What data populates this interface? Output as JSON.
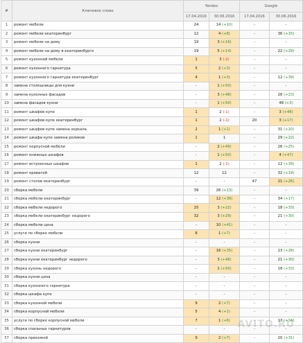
{
  "header": {
    "num": "#",
    "keyword": "Ключевое слово",
    "yandex": "Yandex",
    "google": "Google",
    "date1": "17.04.2016",
    "date2": "30.06.2016"
  },
  "rows": [
    {
      "n": "1",
      "kw": "ремонт мебели",
      "y1": "24",
      "y2": "14",
      "y2d": "(+10)",
      "g1": "-",
      "g2": "-",
      "g2d": ""
    },
    {
      "n": "2",
      "kw": "ремонт мебели екатеринбург",
      "y1": "12",
      "y2": "4",
      "y2d": "(+8)",
      "g1": "-",
      "g2": "36",
      "g2d": "(+15)"
    },
    {
      "n": "3",
      "kw": "ремонт мебели на дому",
      "y1": "19",
      "y2": "3",
      "y2d": "(+16)",
      "g1": "-",
      "g2": "-",
      "g2d": ""
    },
    {
      "n": "4",
      "kw": "ремонт мебели на дому в екатеринбурге",
      "y1": "19",
      "y2": "5",
      "y2d": "(+14)",
      "g1": "-",
      "g2": "22",
      "g2d": "(+29)"
    },
    {
      "n": "5",
      "kw": "ремонт кухонной мебели",
      "y1": "1",
      "y2": "3",
      "y2d": "(-2)",
      "g1": "-",
      "g2": "-",
      "g2d": ""
    },
    {
      "n": "6",
      "kw": "ремонт кухонного гарнитура",
      "y1": "5",
      "y2": "2",
      "y2d": "(+3)",
      "g1": "-",
      "g2": "-",
      "g2d": ""
    },
    {
      "n": "7",
      "kw": "ремонт кухонного гарнитура екатеринбург",
      "y1": "4",
      "y2": "1",
      "y2d": "(+3)",
      "g1": "-",
      "g2": "12",
      "g2d": "(+39)"
    },
    {
      "n": "8",
      "kw": "замена столешницы для кухни",
      "y1": "-",
      "y2": "1",
      "y2d": "(+50)",
      "g1": "-",
      "g2": "-",
      "g2d": ""
    },
    {
      "n": "9",
      "kw": "замена кухонных фасадов",
      "y1": "-",
      "y2": "3",
      "y2d": "(+48)",
      "g1": "-",
      "g2": "28",
      "g2d": "(+23)"
    },
    {
      "n": "10",
      "kw": "замена фасадов кухни",
      "y1": "-",
      "y2": "1",
      "y2d": "(+50)",
      "g1": "-",
      "g2": "48",
      "g2d": "(+3)"
    },
    {
      "n": "11",
      "kw": "ремонт шкафов купе",
      "y1": "1",
      "y2": "2",
      "y2d": "(-1)",
      "g1": "-",
      "g2": "3",
      "g2d": "(+48)"
    },
    {
      "n": "12",
      "kw": "ремонт шкафов купе екатеринбург",
      "y1": "1",
      "y2": "2",
      "y2d": "(-1)",
      "g1": "20",
      "g2": "3",
      "g2d": "(+17)"
    },
    {
      "n": "13",
      "kw": "ремонт шкафов купе замена зеркала",
      "y1": "2",
      "y2": "1",
      "y2d": "(+1)",
      "g1": "-",
      "g2": "31",
      "g2d": "(+20)"
    },
    {
      "n": "14",
      "kw": "ремонт шкафа купе замена роликов",
      "y1": "1",
      "y2": "1",
      "y2d": "",
      "g1": "-",
      "g2": "29",
      "g2d": "(+22)"
    },
    {
      "n": "15",
      "kw": "ремонт корпусной мебели",
      "y1": "-",
      "y2": "2",
      "y2d": "(+49)",
      "g1": "-",
      "g2": "26",
      "g2d": "(+25)"
    },
    {
      "n": "16",
      "kw": "ремонт книжных шкафов",
      "y1": "-",
      "y2": "1",
      "y2d": "(+50)",
      "g1": "-",
      "g2": "4",
      "g2d": "(+47)"
    },
    {
      "n": "17",
      "kw": "ремонт встроенных шкафов",
      "y1": "1",
      "y2": "2",
      "y2d": "(-1)",
      "g1": "-",
      "g2": "12",
      "g2d": "(+39)"
    },
    {
      "n": "18",
      "kw": "ремонт кроватей",
      "y1": "12",
      "y2": "12",
      "y2d": "",
      "g1": "-",
      "g2": "32",
      "g2d": "(+19)"
    },
    {
      "n": "19",
      "kw": "ремонт столов екатеринбург",
      "y1": "-",
      "y2": "-",
      "y2d": "",
      "g1": "47",
      "g2": "21",
      "g2d": "(+26)"
    },
    {
      "n": "20",
      "kw": "сборка мебели",
      "y1": "39",
      "y2": "26",
      "y2d": "(+13)",
      "g1": "-",
      "g2": "-",
      "g2d": ""
    },
    {
      "n": "21",
      "kw": "сборка мебели екатеринбург",
      "y1": "-",
      "y2": "12",
      "y2d": "(+39)",
      "g1": "-",
      "g2": "34",
      "g2d": "(+17)"
    },
    {
      "n": "22",
      "kw": "сборка мебели недорого",
      "y1": "25",
      "y2": "3",
      "y2d": "(+22)",
      "g1": "-",
      "g2": "18",
      "g2d": "(+33)"
    },
    {
      "n": "23",
      "kw": "сборка мебели екатеринбург недорого",
      "y1": "32",
      "y2": "3",
      "y2d": "(+29)",
      "g1": "-",
      "g2": "21",
      "g2d": "(+30)"
    },
    {
      "n": "24",
      "kw": "сборка мебели цена",
      "y1": "-",
      "y2": "10",
      "y2d": "(+41)",
      "g1": "-",
      "g2": "-",
      "g2d": ""
    },
    {
      "n": "25",
      "kw": "услуги по сборке мебели",
      "y1": "8",
      "y2": "1",
      "y2d": "(+7)",
      "g1": "-",
      "g2": "-",
      "g2d": ""
    },
    {
      "n": "26",
      "kw": "сборка кухни",
      "y1": "-",
      "y2": "-",
      "y2d": "",
      "g1": "-",
      "g2": "-",
      "g2d": ""
    },
    {
      "n": "27",
      "kw": "сборка кухни екатеринбург",
      "y1": "-",
      "y2": "16",
      "y2d": "(+35)",
      "g1": "-",
      "g2": "23",
      "g2d": "(+28)"
    },
    {
      "n": "28",
      "kw": "сборка кухни екатеринбург недорого",
      "y1": "-",
      "y2": "3",
      "y2d": "(+48)",
      "g1": "-",
      "g2": "21",
      "g2d": "(+30)"
    },
    {
      "n": "29",
      "kw": "сборка кухонь недорого",
      "y1": "-",
      "y2": "1",
      "y2d": "(+50)",
      "g1": "-",
      "g2": "18",
      "g2d": "(+33)"
    },
    {
      "n": "30",
      "kw": "сборка кухни цена",
      "y1": "-",
      "y2": "-",
      "y2d": "",
      "g1": "-",
      "g2": "-",
      "g2d": ""
    },
    {
      "n": "31",
      "kw": "сборка кухонного гарнитура",
      "y1": "-",
      "y2": "-",
      "y2d": "",
      "g1": "-",
      "g2": "-",
      "g2d": ""
    },
    {
      "n": "32",
      "kw": "сборка шкафа купе",
      "y1": "-",
      "y2": "-",
      "y2d": "",
      "g1": "-",
      "g2": "-",
      "g2d": ""
    },
    {
      "n": "33",
      "kw": "сборка кухонной мебели",
      "y1": "9",
      "y2": "2",
      "y2d": "(+7)",
      "g1": "-",
      "g2": "-",
      "g2d": ""
    },
    {
      "n": "34",
      "kw": "сборка корпусной мебели",
      "y1": "5",
      "y2": "4",
      "y2d": "(+1)",
      "g1": "-",
      "g2": "-",
      "g2d": ""
    },
    {
      "n": "35",
      "kw": "услуги по сборке корпусной мебели",
      "y1": "7",
      "y2": "1",
      "y2d": "(+6)",
      "g1": "-",
      "g2": "17",
      "g2d": "(+34)"
    },
    {
      "n": "36",
      "kw": "сборка спальных гарнитуров",
      "y1": "-",
      "y2": "-",
      "y2d": "",
      "g1": "-",
      "g2": "-",
      "g2d": ""
    },
    {
      "n": "37",
      "kw": "сборка прихожей",
      "y1": "9",
      "y2": "2",
      "y2d": "(+7)",
      "g1": "-",
      "g2": "20",
      "g2d": "(+31)"
    }
  ],
  "watermark": "AVITO.RU",
  "colors": {
    "positive": "#2e8b2e",
    "negative": "#c0392b",
    "highlight": "#fce4b4"
  }
}
